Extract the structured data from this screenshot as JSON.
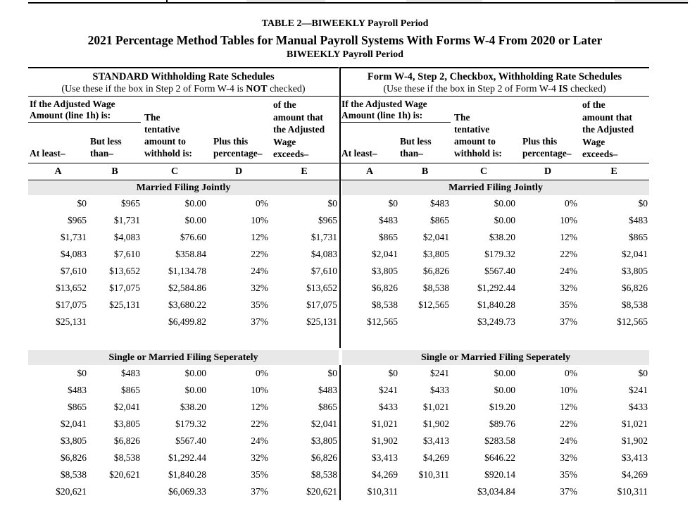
{
  "page_header": {
    "table_label": "TABLE 2—BIWEEKLY Payroll Period",
    "main_title": "2021 Percentage Method Tables for Manual Payroll Systems With Forms W-4 From 2020 or Later",
    "period_subtitle": "BIWEEKLY Payroll Period"
  },
  "column_headers": {
    "adjusted_wage_label": "If the Adjusted Wage\nAmount (line 1h) is:",
    "at_least": "At least–",
    "but_less_than": "But less\nthan–",
    "tentative_amount": "The\ntentative\namount to\nwithhold is:",
    "plus_percentage": "Plus this\npercentage–",
    "of_amount_exceeds": "of the\namount that\nthe Adjusted\nWage\nexceeds–",
    "letters": [
      "A",
      "B",
      "C",
      "D",
      "E"
    ]
  },
  "schedules": [
    {
      "heading": "STANDARD Withholding Rate Schedules",
      "subheading_prefix": "(Use these if the box in Step 2 of Form W-4 is ",
      "subheading_emphasis": "NOT",
      "subheading_suffix": " checked)",
      "sections": [
        {
          "label": "Married Filing Jointly",
          "rows": [
            [
              "$0",
              "$965",
              "$0.00",
              "0%",
              "$0"
            ],
            [
              "$965",
              "$1,731",
              "$0.00",
              "10%",
              "$965"
            ],
            [
              "$1,731",
              "$4,083",
              "$76.60",
              "12%",
              "$1,731"
            ],
            [
              "$4,083",
              "$7,610",
              "$358.84",
              "22%",
              "$4,083"
            ],
            [
              "$7,610",
              "$13,652",
              "$1,134.78",
              "24%",
              "$7,610"
            ],
            [
              "$13,652",
              "$17,075",
              "$2,584.86",
              "32%",
              "$13,652"
            ],
            [
              "$17,075",
              "$25,131",
              "$3,680.22",
              "35%",
              "$17,075"
            ],
            [
              "$25,131",
              "",
              "$6,499.82",
              "37%",
              "$25,131"
            ]
          ]
        },
        {
          "label": "Single or Married Filing Seperately",
          "rows": [
            [
              "$0",
              "$483",
              "$0.00",
              "0%",
              "$0"
            ],
            [
              "$483",
              "$865",
              "$0.00",
              "10%",
              "$483"
            ],
            [
              "$865",
              "$2,041",
              "$38.20",
              "12%",
              "$865"
            ],
            [
              "$2,041",
              "$3,805",
              "$179.32",
              "22%",
              "$2,041"
            ],
            [
              "$3,805",
              "$6,826",
              "$567.40",
              "24%",
              "$3,805"
            ],
            [
              "$6,826",
              "$8,538",
              "$1,292.44",
              "32%",
              "$6,826"
            ],
            [
              "$8,538",
              "$20,621",
              "$1,840.28",
              "35%",
              "$8,538"
            ],
            [
              "$20,621",
              "",
              "$6,069.33",
              "37%",
              "$20,621"
            ]
          ]
        }
      ]
    },
    {
      "heading": "Form W-4, Step 2, Checkbox, Withholding Rate Schedules",
      "subheading_prefix": "(Use these if the box in Step 2 of Form W-4 ",
      "subheading_emphasis": "IS",
      "subheading_suffix": " checked)",
      "sections": [
        {
          "label": "Married Filing Jointly",
          "rows": [
            [
              "$0",
              "$483",
              "$0.00",
              "0%",
              "$0"
            ],
            [
              "$483",
              "$865",
              "$0.00",
              "10%",
              "$483"
            ],
            [
              "$865",
              "$2,041",
              "$38.20",
              "12%",
              "$865"
            ],
            [
              "$2,041",
              "$3,805",
              "$179.32",
              "22%",
              "$2,041"
            ],
            [
              "$3,805",
              "$6,826",
              "$567.40",
              "24%",
              "$3,805"
            ],
            [
              "$6,826",
              "$8,538",
              "$1,292.44",
              "32%",
              "$6,826"
            ],
            [
              "$8,538",
              "$12,565",
              "$1,840.28",
              "35%",
              "$8,538"
            ],
            [
              "$12,565",
              "",
              "$3,249.73",
              "37%",
              "$12,565"
            ]
          ]
        },
        {
          "label": "Single or Married Filing Seperately",
          "rows": [
            [
              "$0",
              "$241",
              "$0.00",
              "0%",
              "$0"
            ],
            [
              "$241",
              "$433",
              "$0.00",
              "10%",
              "$241"
            ],
            [
              "$433",
              "$1,021",
              "$19.20",
              "12%",
              "$433"
            ],
            [
              "$1,021",
              "$1,902",
              "$89.76",
              "22%",
              "$1,021"
            ],
            [
              "$1,902",
              "$3,413",
              "$283.58",
              "24%",
              "$1,902"
            ],
            [
              "$3,413",
              "$4,269",
              "$646.22",
              "32%",
              "$3,413"
            ],
            [
              "$4,269",
              "$10,311",
              "$920.14",
              "35%",
              "$4,269"
            ],
            [
              "$10,311",
              "",
              "$3,034.84",
              "37%",
              "$10,311"
            ]
          ]
        }
      ]
    }
  ],
  "colors": {
    "band_gray": "#e8e8e8",
    "line_black": "#000000"
  }
}
